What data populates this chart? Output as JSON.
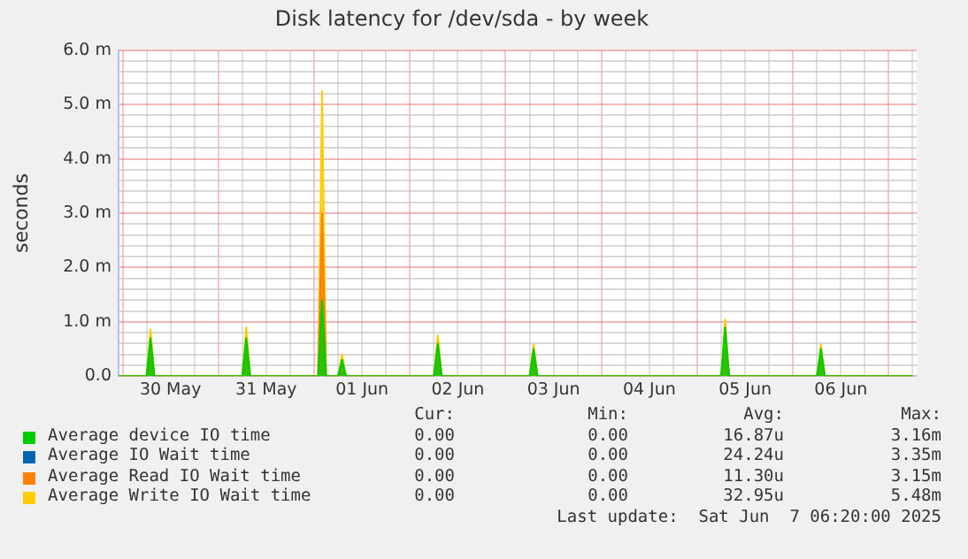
{
  "chart_data": {
    "type": "area",
    "title": "Disk latency for /dev/sda - by week",
    "ylabel": "seconds",
    "x": [
      "2025-05-29T23:00",
      "2025-05-30T06:00",
      "2025-05-30T07:00",
      "2025-05-30T08:00",
      "2025-05-31T06:00",
      "2025-05-31T07:00",
      "2025-05-31T08:00",
      "2025-06-01T01:00",
      "2025-06-01T02:00",
      "2025-06-01T03:00",
      "2025-06-01T06:00",
      "2025-06-01T07:00",
      "2025-06-01T08:00",
      "2025-06-02T06:00",
      "2025-06-02T07:00",
      "2025-06-02T08:00",
      "2025-06-03T06:00",
      "2025-06-03T07:00",
      "2025-06-03T08:00",
      "2025-06-05T06:00",
      "2025-06-05T07:00",
      "2025-06-05T08:00",
      "2025-06-06T06:00",
      "2025-06-06T07:00",
      "2025-06-06T08:00",
      "2025-06-07T06:00"
    ],
    "series": [
      {
        "name": "Average device IO time",
        "color": "#00cc00",
        "values": [
          0,
          0,
          0.7,
          0,
          0,
          0.7,
          0,
          0,
          1.4,
          0,
          0,
          0.3,
          0,
          0,
          0.6,
          0,
          0,
          0.5,
          0,
          0,
          0.9,
          0,
          0,
          0.5,
          0,
          0
        ]
      },
      {
        "name": "Average IO Wait time",
        "color": "#0066b3",
        "values": [
          null,
          null,
          null,
          null,
          null,
          null,
          null,
          null,
          null,
          null,
          null,
          null,
          null,
          null,
          null,
          null,
          null,
          null,
          null,
          null,
          null,
          null,
          null,
          null,
          null,
          null
        ]
      },
      {
        "name": "Average Read IO Wait time",
        "color": "#ff8000",
        "values": [
          0,
          0,
          0.4,
          0,
          0,
          0.4,
          0,
          0,
          3.0,
          0,
          0,
          0.2,
          0,
          0,
          0.3,
          0,
          0,
          0.3,
          0,
          0,
          0.5,
          0,
          0,
          0.3,
          0,
          0
        ]
      },
      {
        "name": "Average Write IO Wait time",
        "color": "#ffcc00",
        "values": [
          0,
          0,
          0.86,
          0,
          0,
          0.9,
          0,
          0,
          5.25,
          0,
          0,
          0.4,
          0,
          0,
          0.75,
          0,
          0,
          0.58,
          0,
          0,
          1.05,
          0,
          0,
          0.58,
          0,
          0
        ]
      }
    ],
    "xlim": [
      "2025-05-29T23:00",
      "2025-06-07T07:00"
    ],
    "xticks": [
      {
        "value": "2025-05-30T00:00",
        "label": null
      },
      {
        "value": "2025-05-30T06:00",
        "label": null
      },
      {
        "value": "2025-05-30T12:00",
        "label": "30 May"
      },
      {
        "value": "2025-05-30T18:00",
        "label": null
      },
      {
        "value": "2025-05-31T00:00",
        "label": null
      },
      {
        "value": "2025-05-31T06:00",
        "label": null
      },
      {
        "value": "2025-05-31T12:00",
        "label": "31 May"
      },
      {
        "value": "2025-05-31T18:00",
        "label": null
      },
      {
        "value": "2025-06-01T00:00",
        "label": null
      },
      {
        "value": "2025-06-01T06:00",
        "label": null
      },
      {
        "value": "2025-06-01T12:00",
        "label": "01 Jun"
      },
      {
        "value": "2025-06-01T18:00",
        "label": null
      },
      {
        "value": "2025-06-02T00:00",
        "label": null
      },
      {
        "value": "2025-06-02T06:00",
        "label": null
      },
      {
        "value": "2025-06-02T12:00",
        "label": "02 Jun"
      },
      {
        "value": "2025-06-02T18:00",
        "label": null
      },
      {
        "value": "2025-06-03T00:00",
        "label": null
      },
      {
        "value": "2025-06-03T06:00",
        "label": null
      },
      {
        "value": "2025-06-03T12:00",
        "label": "03 Jun"
      },
      {
        "value": "2025-06-03T18:00",
        "label": null
      },
      {
        "value": "2025-06-04T00:00",
        "label": null
      },
      {
        "value": "2025-06-04T06:00",
        "label": null
      },
      {
        "value": "2025-06-04T12:00",
        "label": "04 Jun"
      },
      {
        "value": "2025-06-04T18:00",
        "label": null
      },
      {
        "value": "2025-06-05T00:00",
        "label": null
      },
      {
        "value": "2025-06-05T06:00",
        "label": null
      },
      {
        "value": "2025-06-05T12:00",
        "label": "05 Jun"
      },
      {
        "value": "2025-06-05T18:00",
        "label": null
      },
      {
        "value": "2025-06-06T00:00",
        "label": null
      },
      {
        "value": "2025-06-06T06:00",
        "label": null
      },
      {
        "value": "2025-06-06T12:00",
        "label": "06 Jun"
      },
      {
        "value": "2025-06-06T18:00",
        "label": null
      },
      {
        "value": "2025-06-07T00:00",
        "label": null
      },
      {
        "value": "2025-06-07T06:00",
        "label": null
      }
    ],
    "ylim": [
      0,
      6
    ],
    "yticks": [
      {
        "value": 0,
        "label": "0.0"
      },
      {
        "value": 0.2,
        "label": null
      },
      {
        "value": 0.4,
        "label": null
      },
      {
        "value": 0.6,
        "label": null
      },
      {
        "value": 0.8,
        "label": null
      },
      {
        "value": 1,
        "label": "1.0 m"
      },
      {
        "value": 1.2,
        "label": null
      },
      {
        "value": 1.4,
        "label": null
      },
      {
        "value": 1.6,
        "label": null
      },
      {
        "value": 1.8,
        "label": null
      },
      {
        "value": 2,
        "label": "2.0 m"
      },
      {
        "value": 2.2,
        "label": null
      },
      {
        "value": 2.4,
        "label": null
      },
      {
        "value": 2.6,
        "label": null
      },
      {
        "value": 2.8,
        "label": null
      },
      {
        "value": 3,
        "label": "3.0 m"
      },
      {
        "value": 3.2,
        "label": null
      },
      {
        "value": 3.4,
        "label": null
      },
      {
        "value": 3.6,
        "label": null
      },
      {
        "value": 3.8,
        "label": null
      },
      {
        "value": 4,
        "label": "4.0 m"
      },
      {
        "value": 4.2,
        "label": null
      },
      {
        "value": 4.4,
        "label": null
      },
      {
        "value": 4.6,
        "label": null
      },
      {
        "value": 4.8,
        "label": null
      },
      {
        "value": 5,
        "label": "5.0 m"
      },
      {
        "value": 5.2,
        "label": null
      },
      {
        "value": 5.4,
        "label": null
      },
      {
        "value": 5.6,
        "label": null
      },
      {
        "value": 5.8,
        "label": null
      },
      {
        "value": 6,
        "label": "6.0 m"
      }
    ],
    "grid": true,
    "legend": "bottom",
    "annotations": [
      "Cur:",
      "Min:",
      "Avg:",
      "Max:",
      "0.00",
      "0.00",
      "16.87u",
      "3.16m",
      "0.00",
      "0.00",
      "24.24u",
      "3.35m",
      "0.00",
      "0.00",
      "11.30u",
      "3.15m",
      "0.00",
      "0.00",
      "32.95u",
      "5.48m",
      "Last update:  Sat Jun  7 06:20:00 2025"
    ]
  }
}
